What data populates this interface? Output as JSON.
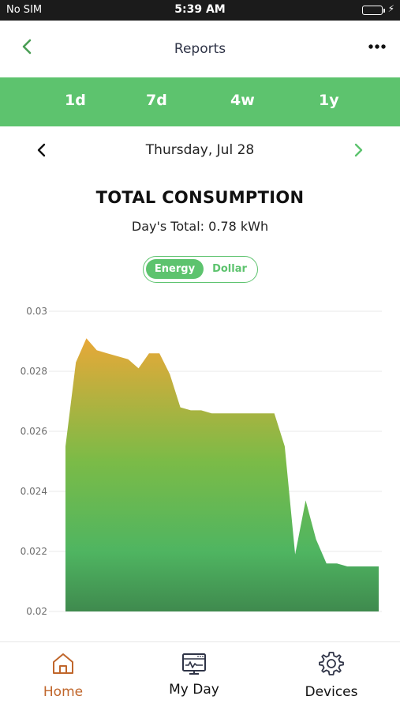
{
  "status_bar": {
    "carrier": "No SIM",
    "time": "5:39 AM",
    "battery_icon": "battery-charging-icon"
  },
  "header": {
    "title": "Reports",
    "back_icon": "chevron-left-icon",
    "more_icon": "more-dots-icon"
  },
  "period_tabs": [
    {
      "label": "1d"
    },
    {
      "label": "7d"
    },
    {
      "label": "4w"
    },
    {
      "label": "1y"
    }
  ],
  "date_nav": {
    "date": "Thursday, Jul 28"
  },
  "report": {
    "title": "TOTAL CONSUMPTION",
    "total": "Day's Total: 0.78 kWh"
  },
  "toggle": {
    "energy": "Energy",
    "dollar": "Dollar",
    "selected": "Energy"
  },
  "colors": {
    "accent": "#5dc36e",
    "active_tab": "#c0662b",
    "gradient_top": "#e8a838",
    "gradient_bottom": "#4fb561"
  },
  "chart_data": {
    "type": "area",
    "ylim": [
      0.02,
      0.03
    ],
    "yticks": [
      "0.03",
      "0.028",
      "0.026",
      "0.024",
      "0.022",
      "0.02"
    ],
    "grid": true,
    "values": [
      0.0255,
      0.0283,
      0.0291,
      0.0287,
      0.0286,
      0.0285,
      0.0284,
      0.0281,
      0.0286,
      0.0286,
      0.0279,
      0.0268,
      0.0267,
      0.0267,
      0.0266,
      0.0266,
      0.0266,
      0.0266,
      0.0266,
      0.0266,
      0.0266,
      0.0255,
      0.0219,
      0.0237,
      0.0224,
      0.0216,
      0.0216,
      0.0215,
      0.0215,
      0.0215,
      0.0215
    ]
  },
  "tab_bar": [
    {
      "label": "Home",
      "icon": "home-icon",
      "active": true
    },
    {
      "label": "My Day",
      "icon": "monitor-chart-icon",
      "active": false
    },
    {
      "label": "Devices",
      "icon": "gear-icon",
      "active": false
    }
  ]
}
